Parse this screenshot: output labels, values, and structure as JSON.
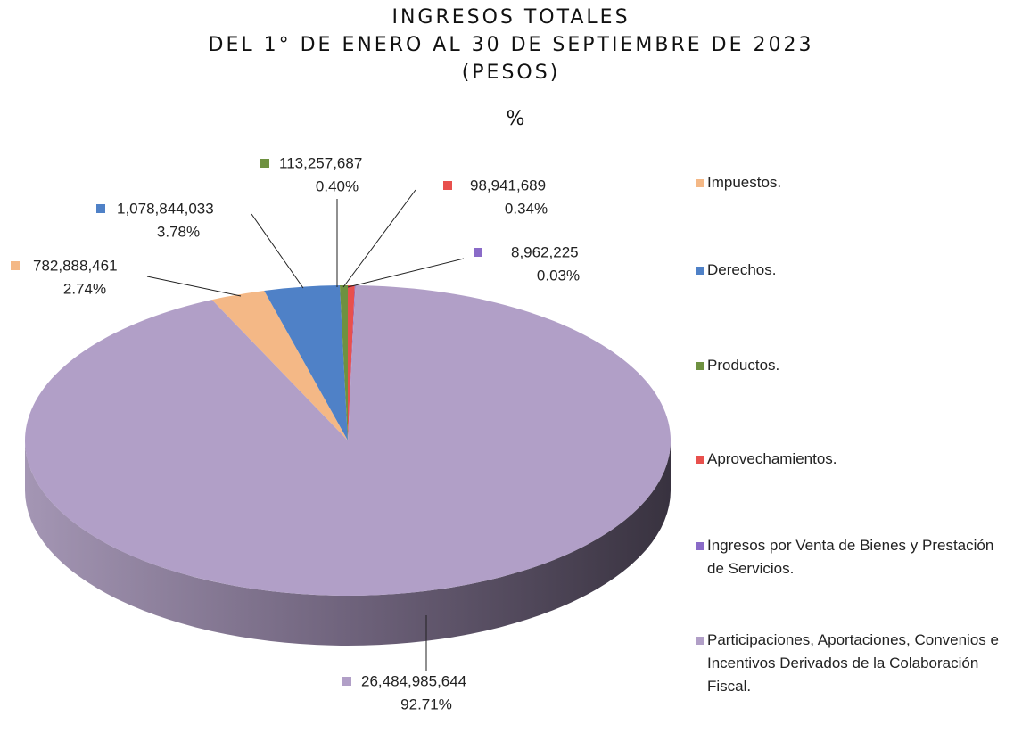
{
  "chart_data": {
    "type": "pie",
    "title": [
      "INGRESOS TOTALES",
      "DEL 1° DE ENERO AL 30 DE SEPTIEMBRE DE 2023",
      "(PESOS)",
      "%"
    ],
    "categories": [
      "Impuestos.",
      "Derechos.",
      "Productos.",
      "Aprovechamientos.",
      "Ingresos por Venta de Bienes y Prestación de Servicios.",
      "Participaciones, Aportaciones, Convenios e Incentivos Derivados de la Colaboración Fiscal."
    ],
    "values": [
      782888461,
      1078844033,
      113257687,
      98941689,
      8962225,
      26484985644
    ],
    "value_labels": [
      "782,888,461",
      "1,078,844,033",
      "113,257,687",
      "98,941,689",
      "8,962,225",
      "26,484,985,644"
    ],
    "percentages": [
      2.74,
      3.78,
      0.4,
      0.34,
      0.03,
      92.71
    ],
    "percentage_labels": [
      "2.74%",
      "3.78%",
      "0.40%",
      "0.34%",
      "0.03%",
      "92.71%"
    ],
    "colors": [
      "#f4b886",
      "#4f81c7",
      "#6e9140",
      "#e8504d",
      "#8a6bc8",
      "#b19fc7"
    ],
    "legend": "right"
  }
}
